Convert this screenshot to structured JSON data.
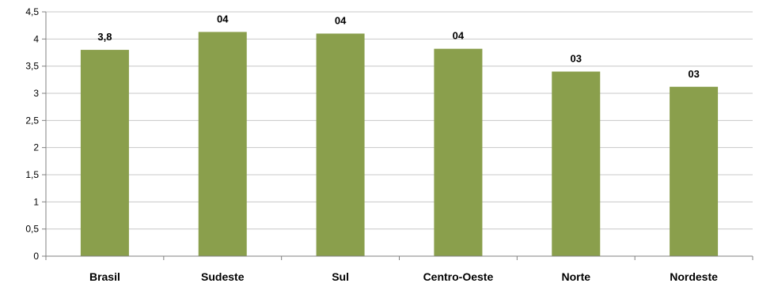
{
  "chart_data": {
    "type": "bar",
    "categories": [
      "Brasil",
      "Sudeste",
      "Sul",
      "Centro-Oeste",
      "Norte",
      "Nordeste"
    ],
    "values": [
      3.8,
      4.13,
      4.1,
      3.82,
      3.4,
      3.12
    ],
    "data_labels": [
      "3,8",
      "04",
      "04",
      "04",
      "03",
      "03"
    ],
    "ylim": [
      0,
      4.5
    ],
    "yticks": [
      0,
      0.5,
      1,
      1.5,
      2,
      2.5,
      3,
      3.5,
      4,
      4.5
    ],
    "ytick_labels": [
      "0",
      "0,5",
      "1",
      "1,5",
      "2",
      "2,5",
      "3",
      "3,5",
      "4",
      "4,5"
    ],
    "grid": true,
    "legend": "none",
    "bar_color": "#8a9f4c",
    "grid_color": "#c8c8c8",
    "axis_color": "#808080"
  }
}
